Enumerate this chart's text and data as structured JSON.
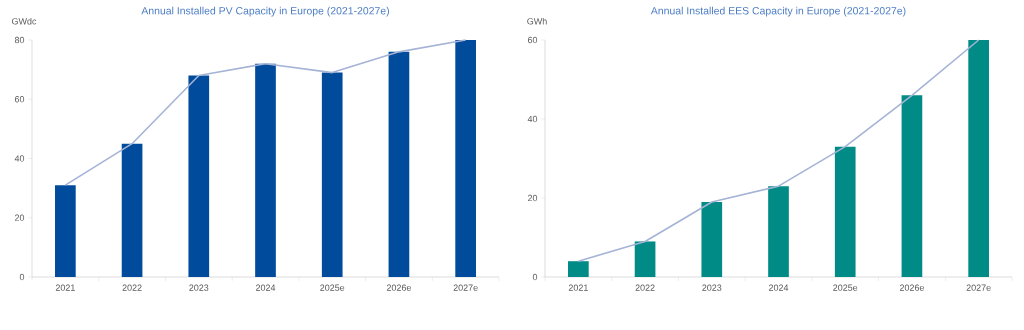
{
  "chart_data": [
    {
      "type": "bar",
      "title": "Annual Installed PV Capacity in Europe (2021-2027e)",
      "ylabel": "GWdc",
      "categories": [
        "2021",
        "2022",
        "2023",
        "2024",
        "2025e",
        "2026e",
        "2027e"
      ],
      "series": [
        {
          "color": "#004b9b",
          "values": [
            31,
            45,
            68,
            72,
            69,
            76,
            80
          ]
        },
        {
          "type": "line",
          "color": "#a4b3d6",
          "values": [
            31,
            45,
            68,
            72,
            69,
            76,
            80
          ]
        }
      ],
      "ylim": [
        0,
        80
      ],
      "yticks": [
        0,
        20,
        40,
        60,
        80
      ]
    },
    {
      "type": "bar",
      "title": "Annual Installed EES Capacity in Europe (2021-2027e)",
      "ylabel": "GWh",
      "categories": [
        "2021",
        "2022",
        "2023",
        "2024",
        "2025e",
        "2026e",
        "2027e"
      ],
      "series": [
        {
          "color": "#008b86",
          "values": [
            4,
            9,
            19,
            23,
            33,
            46,
            60
          ]
        },
        {
          "type": "line",
          "color": "#a4b3d6",
          "values": [
            4,
            9,
            19,
            23,
            33,
            46,
            60
          ]
        }
      ],
      "ylim": [
        0,
        60
      ],
      "yticks": [
        0,
        20,
        40,
        60
      ]
    }
  ]
}
